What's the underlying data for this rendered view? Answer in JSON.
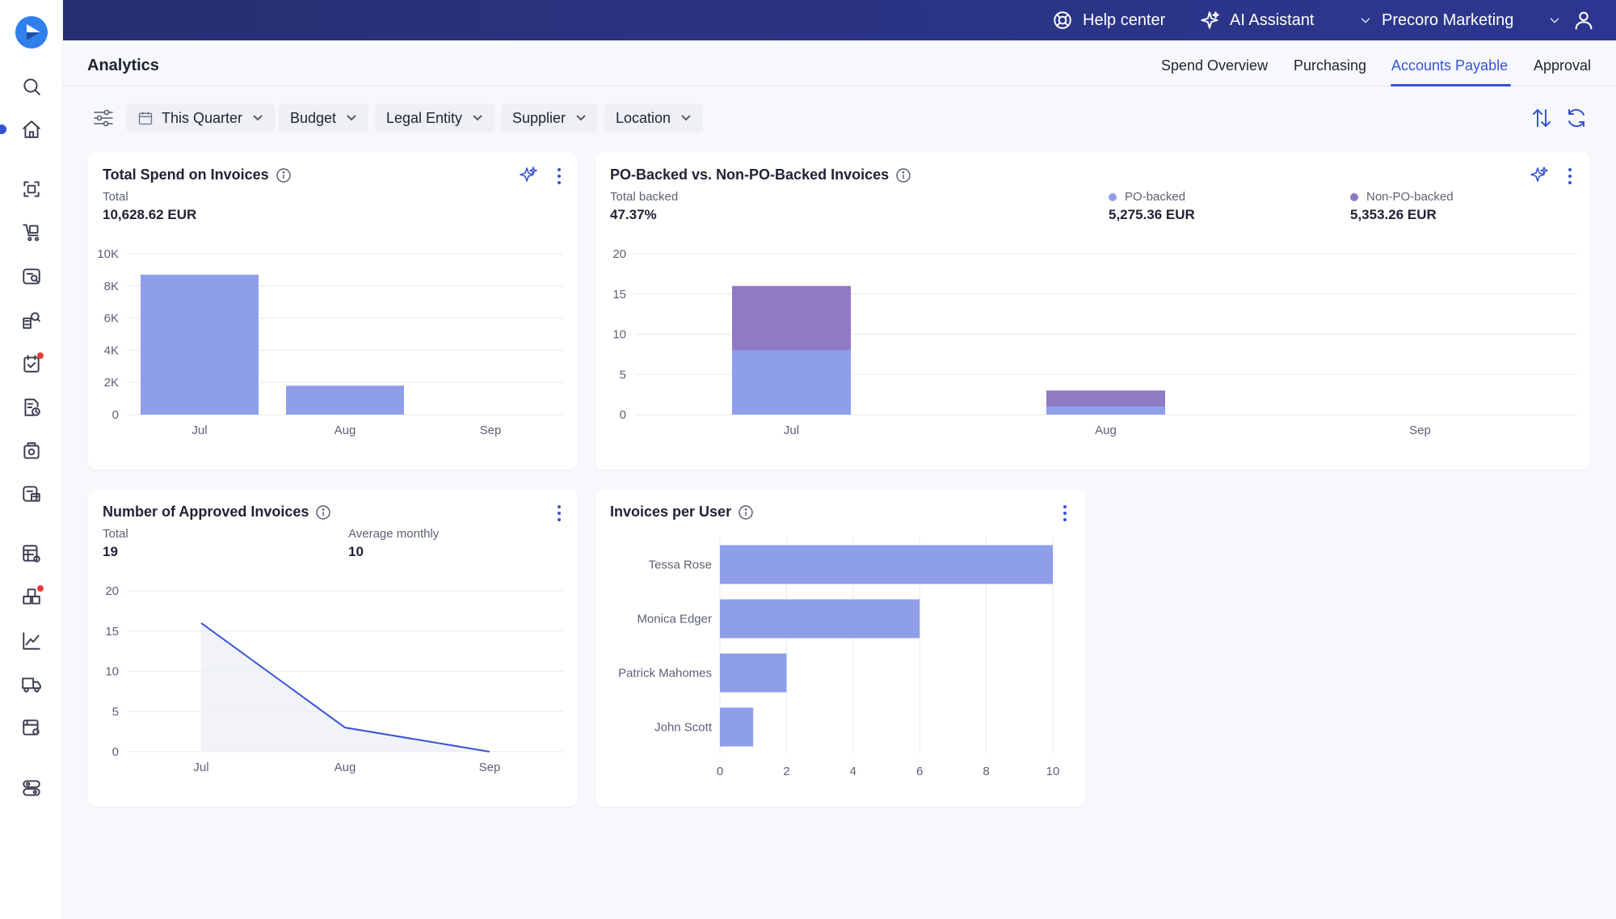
{
  "topbar": {
    "help_center": "Help center",
    "ai_assistant": "AI Assistant",
    "company": "Precoro Marketing"
  },
  "page": {
    "title": "Analytics",
    "tabs": [
      {
        "label": "Spend Overview",
        "active": false
      },
      {
        "label": "Purchasing",
        "active": false
      },
      {
        "label": "Accounts Payable",
        "active": true
      },
      {
        "label": "Approval",
        "active": false
      }
    ]
  },
  "filters": {
    "period": "This Quarter",
    "budget": "Budget",
    "legal_entity": "Legal Entity",
    "supplier": "Supplier",
    "location": "Location"
  },
  "colors": {
    "accent": "#3553d6",
    "bar_blue": "#8f9ee9",
    "bar_purple": "#8f7bc3",
    "header_bg": "#262f70"
  },
  "cards": {
    "total_spend": {
      "title": "Total Spend on Invoices",
      "total_label": "Total",
      "total_value": "10,628.62 EUR"
    },
    "po_backed": {
      "title": "PO-Backed vs. Non-PO-Backed Invoices",
      "total_label": "Total backed",
      "total_value": "47.37%",
      "po_label": "PO-backed",
      "po_value": "5,275.36 EUR",
      "non_po_label": "Non-PO-backed",
      "non_po_value": "5,353.26 EUR"
    },
    "approved": {
      "title": "Number of Approved Invoices",
      "total_label": "Total",
      "total_value": "19",
      "avg_label": "Average monthly",
      "avg_value": "10"
    },
    "per_user": {
      "title": "Invoices per User"
    }
  },
  "chart_data": [
    {
      "type": "bar",
      "title": "Total Spend on Invoices",
      "categories": [
        "Jul",
        "Aug",
        "Sep"
      ],
      "values": [
        8700,
        1800,
        0
      ],
      "yticks": [
        "0",
        "2K",
        "4K",
        "6K",
        "8K",
        "10K"
      ],
      "ylim": [
        0,
        10000
      ]
    },
    {
      "type": "bar",
      "stacked": true,
      "title": "PO-Backed vs. Non-PO-Backed Invoices",
      "categories": [
        "Jul",
        "Aug",
        "Sep"
      ],
      "series": [
        {
          "name": "PO-backed",
          "values": [
            8,
            1,
            0
          ]
        },
        {
          "name": "Non-PO-backed",
          "values": [
            8,
            2,
            0
          ]
        }
      ],
      "yticks": [
        "0",
        "5",
        "10",
        "15",
        "20"
      ],
      "ylim": [
        0,
        20
      ]
    },
    {
      "type": "line",
      "title": "Number of Approved Invoices",
      "categories": [
        "Jul",
        "Aug",
        "Sep"
      ],
      "values": [
        16,
        3,
        0
      ],
      "yticks": [
        "0",
        "5",
        "10",
        "15",
        "20"
      ],
      "ylim": [
        0,
        20
      ]
    },
    {
      "type": "bar",
      "orientation": "horizontal",
      "title": "Invoices per User",
      "categories": [
        "Tessa Rose",
        "Monica Edger",
        "Patrick Mahomes",
        "John Scott"
      ],
      "values": [
        10,
        6,
        2,
        1
      ],
      "xticks": [
        "0",
        "2",
        "4",
        "6",
        "8",
        "10"
      ],
      "xlim": [
        0,
        10
      ]
    }
  ]
}
